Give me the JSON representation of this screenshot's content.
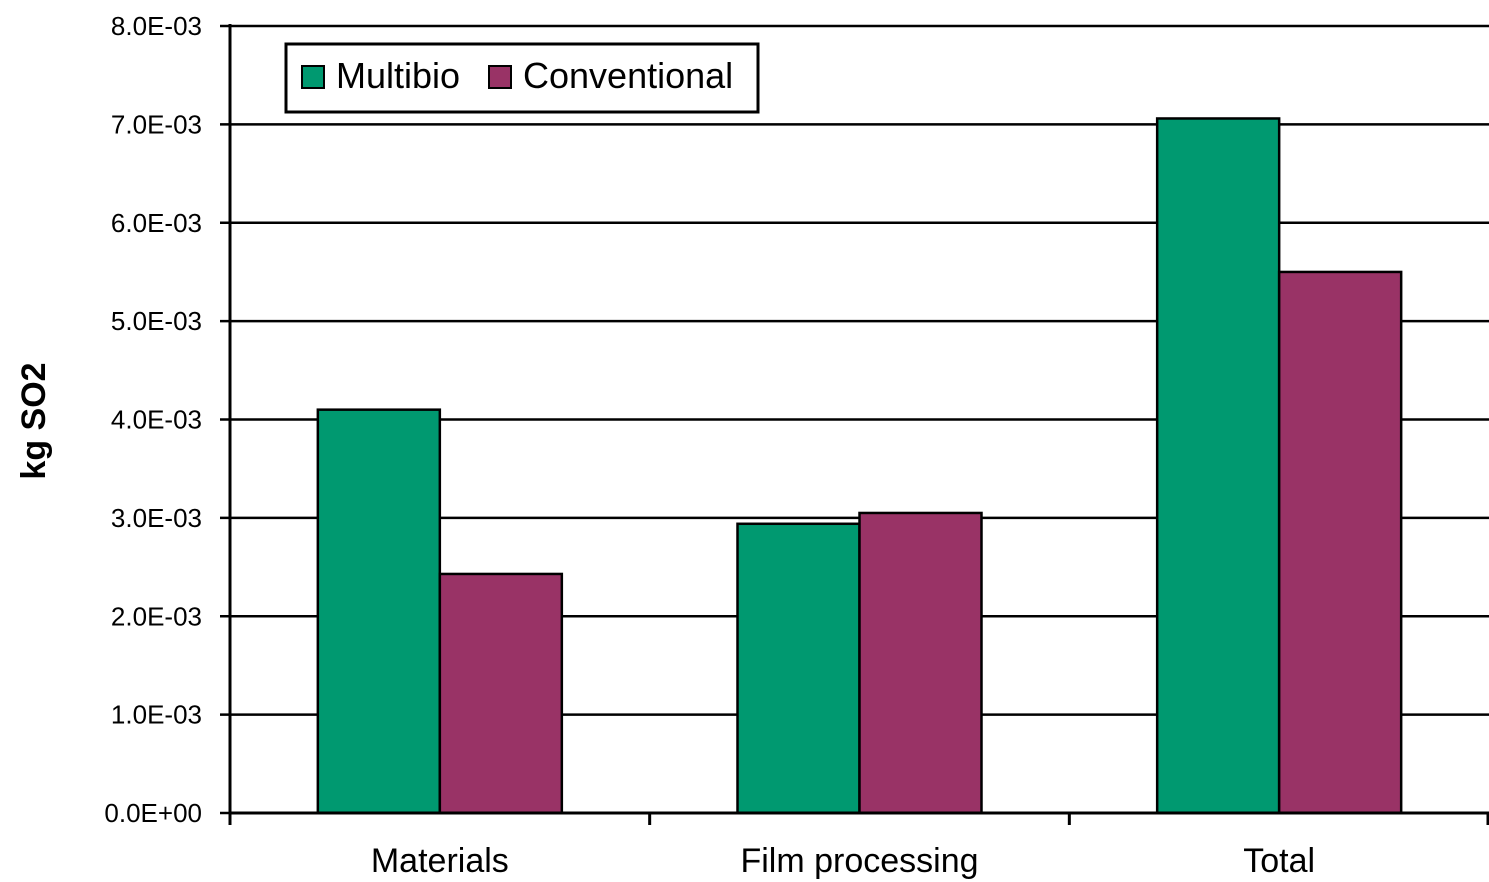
{
  "chart_data": {
    "type": "bar",
    "title": "",
    "xlabel": "",
    "ylabel": "kg SO2",
    "ylim": [
      0,
      0.008
    ],
    "ytick_step": 0.001,
    "ytick_labels": [
      "0.0E+00",
      "1.0E-03",
      "2.0E-03",
      "3.0E-03",
      "4.0E-03",
      "5.0E-03",
      "6.0E-03",
      "7.0E-03",
      "8.0E-03"
    ],
    "categories": [
      "Materials",
      "Film processing",
      "Total"
    ],
    "series": [
      {
        "name": "Multibio",
        "color": "#009970",
        "values": [
          0.0041,
          0.00294,
          0.00706
        ]
      },
      {
        "name": "Conventional",
        "color": "#993366",
        "values": [
          0.00243,
          0.00305,
          0.0055
        ]
      }
    ],
    "grid": true,
    "legend": "top-left"
  }
}
